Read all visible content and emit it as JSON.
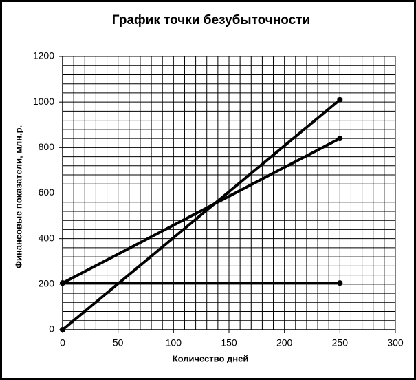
{
  "chart_data": {
    "type": "line",
    "title": "График точки безубыточности",
    "x_label": "Количество дней",
    "y_label": "Финансовые  показатели, млн.р.",
    "x": [
      0,
      250
    ],
    "series": [
      {
        "color": "#000000",
        "values": [
          0,
          1010
        ]
      },
      {
        "color": "#000000",
        "values": [
          205,
          840
        ]
      },
      {
        "color": "#000000",
        "values": [
          205,
          205
        ]
      }
    ],
    "xlim": [
      0,
      300
    ],
    "xticks": [
      0,
      50,
      100,
      150,
      200,
      250,
      300
    ],
    "ylim": [
      0,
      1200
    ],
    "yticks": [
      0,
      200,
      400,
      600,
      800,
      1000,
      1200
    ],
    "grid": true
  }
}
